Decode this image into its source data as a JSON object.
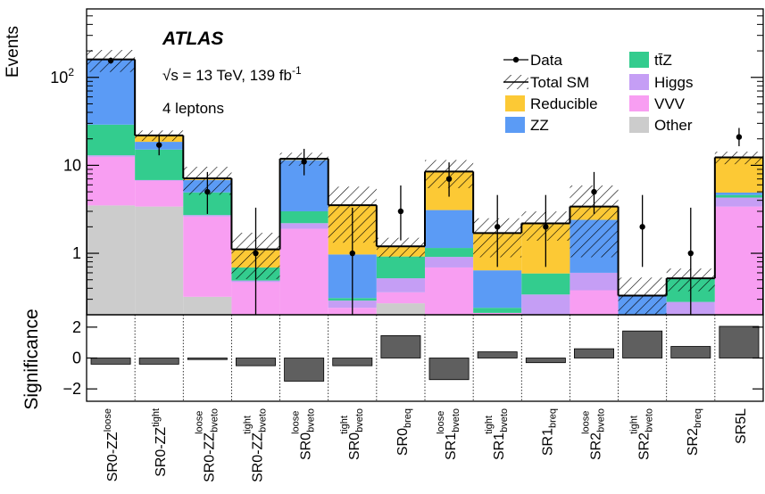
{
  "chart_data": {
    "type": "stacked-bar",
    "brand": "ATLAS",
    "energy_label": {
      "text": "√s = 13 TeV, 139 fb",
      "sup": "-1"
    },
    "selection": "4 leptons",
    "ylabel": "Events",
    "y2label": "Significance",
    "log_y": true,
    "categories": [
      {
        "base": "SR0-ZZ",
        "sup": "loose"
      },
      {
        "base": "SR0-ZZ",
        "sup": "tight"
      },
      {
        "base": "SR0-ZZ",
        "sup": "loose",
        "sub": "bveto"
      },
      {
        "base": "SR0-ZZ",
        "sup": "tight",
        "sub": "bveto"
      },
      {
        "base": "SR0",
        "sup": "loose",
        "sub": "bveto"
      },
      {
        "base": "SR0",
        "sup": "tight",
        "sub": "bveto"
      },
      {
        "base": "SR0",
        "sub": "breq"
      },
      {
        "base": "SR1",
        "sup": "loose",
        "sub": "bveto"
      },
      {
        "base": "SR1",
        "sup": "tight",
        "sub": "bveto"
      },
      {
        "base": "SR1",
        "sub": "breq"
      },
      {
        "base": "SR2",
        "sup": "loose",
        "sub": "bveto"
      },
      {
        "base": "SR2",
        "sup": "tight",
        "sub": "bveto"
      },
      {
        "base": "SR2",
        "sub": "breq"
      },
      {
        "base": "SR5L"
      }
    ],
    "series": [
      {
        "name": "Reducible",
        "color": "#fcc935",
        "values": [
          1,
          3.4,
          0.3,
          0.42,
          0.4,
          2.55,
          0.28,
          5.4,
          1.06,
          1.6,
          1.0,
          0,
          0,
          7.4
        ]
      },
      {
        "name": "ZZ",
        "color": "#5b9bf5",
        "values": [
          130,
          3.4,
          1.9,
          0,
          8.5,
          0.66,
          0,
          1.95,
          0.4,
          0,
          1.8,
          0.3,
          0,
          0.3
        ]
      },
      {
        "name": "tt̄Z",
        "color": "#33cc8e",
        "values": [
          16,
          8.3,
          2.2,
          0.2,
          0.8,
          0.02,
          0.4,
          0.24,
          0.03,
          0.25,
          0,
          0,
          0.24,
          0.3
        ]
      },
      {
        "name": "Higgs",
        "color": "#c59ef5",
        "values": [
          0.5,
          0.1,
          0.1,
          0.02,
          0.3,
          0.05,
          0.16,
          0.22,
          0,
          0.26,
          0.22,
          0.02,
          0.08,
          0.9
        ]
      },
      {
        "name": "VVV",
        "color": "#f89ef2",
        "values": [
          9,
          3.3,
          2.3,
          0.47,
          1.7,
          0.22,
          0.09,
          0.69,
          0.21,
          0.08,
          0.38,
          0.01,
          0.2,
          3.4
        ]
      },
      {
        "name": "Other",
        "color": "#cccccc",
        "values": [
          3.5,
          3.4,
          0.32,
          0,
          0.2,
          0.02,
          0.27,
          0,
          0,
          0,
          0,
          0,
          0,
          0
        ]
      }
    ],
    "data": {
      "name": "Data",
      "values": [
        155,
        17,
        5,
        1,
        11,
        1,
        3,
        7,
        2,
        2,
        5,
        2,
        1,
        21
      ],
      "err_low": [
        12,
        4,
        2.2,
        0.83,
        3.3,
        0.83,
        1.6,
        2.6,
        1.3,
        1.3,
        2.2,
        1.3,
        0.83,
        4.5
      ],
      "err_high": [
        13,
        5,
        3.4,
        2.3,
        4.4,
        2.3,
        2.9,
        3.8,
        2.6,
        2.6,
        3.4,
        2.6,
        2.3,
        5.6
      ]
    },
    "total_sm": {
      "name": "Total SM",
      "uncertainty": [
        45,
        3,
        2.5,
        0.6,
        2,
        2.2,
        0.3,
        3,
        0.8,
        0.8,
        2.5,
        0.2,
        0.15,
        2
      ]
    },
    "significance": [
      -0.4,
      -0.4,
      -0.1,
      -0.5,
      -1.5,
      -0.5,
      1.45,
      -1.4,
      0.4,
      -0.3,
      0.6,
      1.75,
      0.75,
      2.05
    ],
    "significance_color": "#5f5f5f",
    "ylim": [
      0.2,
      600
    ],
    "yticks": [
      1,
      10,
      {
        "value": 100,
        "label": "10",
        "exponent": "2"
      }
    ],
    "yminorticks": [
      0.2,
      0.3,
      0.4,
      0.5,
      0.6,
      0.7,
      0.8,
      0.9,
      2,
      3,
      4,
      5,
      6,
      7,
      8,
      9,
      20,
      30,
      40,
      50,
      60,
      70,
      80,
      90,
      200,
      300,
      400,
      500,
      600
    ],
    "y2lim": [
      -2.8,
      2.8
    ],
    "y2ticks": [
      {
        "value": -2,
        "label": "−2"
      },
      0,
      2
    ]
  }
}
